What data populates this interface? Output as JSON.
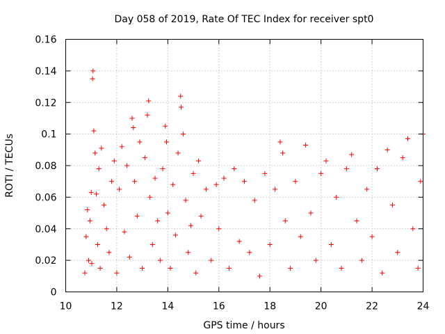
{
  "chart_data": {
    "type": "scatter",
    "title": "Day 058 of 2019, Rate Of TEC Index for receiver spt0",
    "xlabel": "GPS time / hours",
    "ylabel": "ROTI / TECUs",
    "xlim": [
      10,
      24
    ],
    "ylim": [
      0,
      0.16
    ],
    "x_ticks": [
      10,
      12,
      14,
      16,
      18,
      20,
      22,
      24
    ],
    "x_tick_labels": [
      "10",
      "12",
      "14",
      "16",
      "18",
      "20",
      "22",
      "24"
    ],
    "y_ticks": [
      0,
      0.02,
      0.04,
      0.06,
      0.08,
      0.1,
      0.12,
      0.14,
      0.16
    ],
    "y_tick_labels": [
      "0",
      "0.02",
      "0.04",
      "0.06",
      "0.08",
      "0.1",
      "0.12",
      "0.14",
      "0.16"
    ],
    "grid": true,
    "marker": "plus",
    "color": "#ff0000",
    "series": [
      {
        "name": "ROTI",
        "points": [
          [
            10.75,
            0.012
          ],
          [
            10.8,
            0.035
          ],
          [
            10.85,
            0.052
          ],
          [
            10.9,
            0.02
          ],
          [
            10.95,
            0.045
          ],
          [
            11.0,
            0.063
          ],
          [
            11.02,
            0.018
          ],
          [
            11.05,
            0.135
          ],
          [
            11.07,
            0.14
          ],
          [
            11.1,
            0.102
          ],
          [
            11.15,
            0.088
          ],
          [
            11.2,
            0.062
          ],
          [
            11.25,
            0.03
          ],
          [
            11.3,
            0.078
          ],
          [
            11.35,
            0.015
          ],
          [
            11.4,
            0.091
          ],
          [
            11.5,
            0.055
          ],
          [
            11.6,
            0.04
          ],
          [
            11.7,
            0.025
          ],
          [
            11.8,
            0.07
          ],
          [
            11.9,
            0.083
          ],
          [
            12.0,
            0.012
          ],
          [
            12.1,
            0.065
          ],
          [
            12.2,
            0.092
          ],
          [
            12.3,
            0.038
          ],
          [
            12.4,
            0.08
          ],
          [
            12.5,
            0.022
          ],
          [
            12.6,
            0.11
          ],
          [
            12.65,
            0.104
          ],
          [
            12.7,
            0.07
          ],
          [
            12.8,
            0.048
          ],
          [
            12.9,
            0.095
          ],
          [
            13.0,
            0.015
          ],
          [
            13.1,
            0.085
          ],
          [
            13.2,
            0.112
          ],
          [
            13.25,
            0.121
          ],
          [
            13.3,
            0.06
          ],
          [
            13.4,
            0.03
          ],
          [
            13.5,
            0.072
          ],
          [
            13.6,
            0.045
          ],
          [
            13.7,
            0.02
          ],
          [
            13.8,
            0.078
          ],
          [
            13.9,
            0.105
          ],
          [
            13.95,
            0.095
          ],
          [
            14.0,
            0.05
          ],
          [
            14.1,
            0.015
          ],
          [
            14.2,
            0.068
          ],
          [
            14.3,
            0.036
          ],
          [
            14.4,
            0.088
          ],
          [
            14.5,
            0.124
          ],
          [
            14.52,
            0.117
          ],
          [
            14.6,
            0.1
          ],
          [
            14.7,
            0.058
          ],
          [
            14.8,
            0.025
          ],
          [
            14.9,
            0.042
          ],
          [
            15.0,
            0.075
          ],
          [
            15.1,
            0.012
          ],
          [
            15.2,
            0.083
          ],
          [
            15.3,
            0.048
          ],
          [
            15.5,
            0.065
          ],
          [
            15.7,
            0.02
          ],
          [
            15.9,
            0.068
          ],
          [
            16.0,
            0.04
          ],
          [
            16.2,
            0.072
          ],
          [
            16.4,
            0.015
          ],
          [
            16.6,
            0.078
          ],
          [
            16.8,
            0.032
          ],
          [
            17.0,
            0.07
          ],
          [
            17.2,
            0.025
          ],
          [
            17.4,
            0.058
          ],
          [
            17.6,
            0.01
          ],
          [
            17.8,
            0.075
          ],
          [
            18.0,
            0.03
          ],
          [
            18.2,
            0.065
          ],
          [
            18.4,
            0.095
          ],
          [
            18.5,
            0.088
          ],
          [
            18.6,
            0.045
          ],
          [
            18.8,
            0.015
          ],
          [
            19.0,
            0.07
          ],
          [
            19.2,
            0.035
          ],
          [
            19.4,
            0.093
          ],
          [
            19.6,
            0.05
          ],
          [
            19.8,
            0.02
          ],
          [
            20.0,
            0.075
          ],
          [
            20.2,
            0.083
          ],
          [
            20.4,
            0.03
          ],
          [
            20.6,
            0.06
          ],
          [
            20.8,
            0.015
          ],
          [
            21.0,
            0.078
          ],
          [
            21.2,
            0.087
          ],
          [
            21.4,
            0.045
          ],
          [
            21.6,
            0.02
          ],
          [
            21.8,
            0.065
          ],
          [
            22.0,
            0.035
          ],
          [
            22.2,
            0.078
          ],
          [
            22.4,
            0.012
          ],
          [
            22.6,
            0.09
          ],
          [
            22.8,
            0.055
          ],
          [
            23.0,
            0.025
          ],
          [
            23.2,
            0.085
          ],
          [
            23.4,
            0.097
          ],
          [
            23.6,
            0.04
          ],
          [
            23.8,
            0.015
          ],
          [
            23.9,
            0.07
          ],
          [
            24.0,
            0.1
          ]
        ]
      }
    ]
  }
}
